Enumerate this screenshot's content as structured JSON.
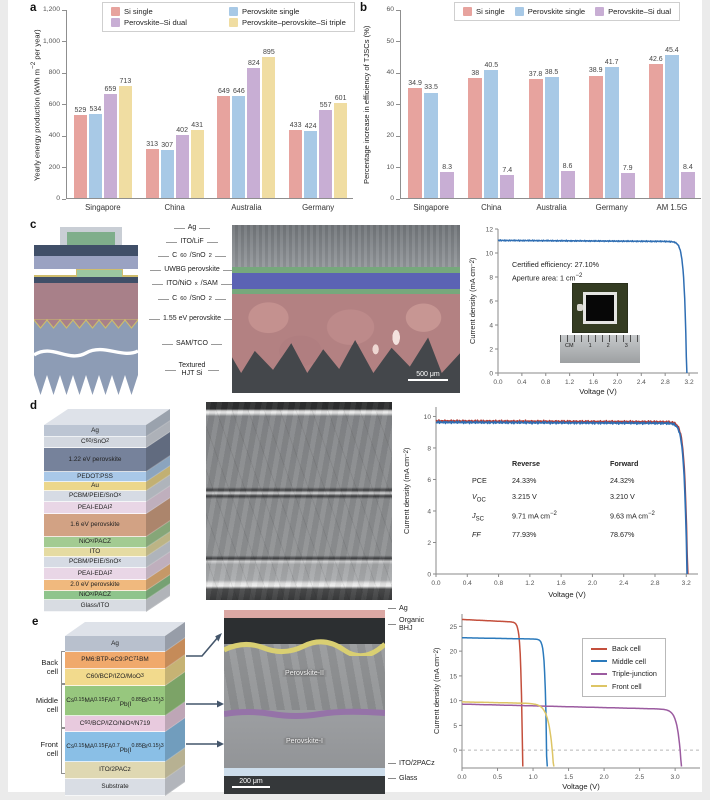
{
  "a": {
    "marker": "a",
    "chart_data": {
      "type": "bar",
      "ylabel_html": "Yearly energy production (kWh m<sup>−2</sup> per year)",
      "ylim": [
        0,
        1200
      ],
      "yticks": [
        {
          "v": 0,
          "t": "0"
        },
        {
          "v": 200,
          "t": "200"
        },
        {
          "v": 400,
          "t": "400"
        },
        {
          "v": 600,
          "t": "600"
        },
        {
          "v": 800,
          "t": "800"
        },
        {
          "v": 1000,
          "t": "1,000"
        },
        {
          "v": 1200,
          "t": "1,200"
        }
      ],
      "categories": [
        "Singapore",
        "China",
        "Australia",
        "Germany"
      ],
      "series": [
        {
          "name": "Si single",
          "color": "#e7a39e",
          "values": [
            529,
            313,
            649,
            433
          ]
        },
        {
          "name": "Perovskite single",
          "color": "#a8c9e6",
          "values": [
            534,
            307,
            646,
            424
          ]
        },
        {
          "name": "Perovskite–Si dual",
          "color": "#c8aed4",
          "values": [
            659,
            402,
            824,
            557
          ]
        },
        {
          "name": "Perovskite–perovskite–Si triple",
          "color": "#f0dda2",
          "values": [
            713,
            431,
            895,
            601
          ]
        }
      ]
    }
  },
  "b": {
    "marker": "b",
    "chart_data": {
      "type": "bar",
      "ylabel_html": "Percentage increase in efficiency of TJSCs (%)",
      "ylim": [
        0,
        60
      ],
      "yticks": [
        {
          "v": 0,
          "t": "0"
        },
        {
          "v": 10,
          "t": "10"
        },
        {
          "v": 20,
          "t": "20"
        },
        {
          "v": 30,
          "t": "30"
        },
        {
          "v": 40,
          "t": "40"
        },
        {
          "v": 50,
          "t": "50"
        },
        {
          "v": 60,
          "t": "60"
        }
      ],
      "categories": [
        "Singapore",
        "China",
        "Australia",
        "Germany",
        "AM 1.5G"
      ],
      "series": [
        {
          "name": "Si single",
          "color": "#e7a39e",
          "values": [
            34.9,
            38,
            37.8,
            38.9,
            42.6
          ]
        },
        {
          "name": "Perovskite single",
          "color": "#a8c9e6",
          "values": [
            33.5,
            40.5,
            38.5,
            41.7,
            45.4
          ]
        },
        {
          "name": "Perovskite–Si dual",
          "color": "#c8aed4",
          "values": [
            8.3,
            7.4,
            8.6,
            7.9,
            8.4
          ]
        }
      ]
    }
  },
  "c": {
    "marker": "c",
    "stack": {
      "labels": [
        {
          "t": "Ag",
          "y": 5
        },
        {
          "t": "ITO/LiF",
          "y": 19
        },
        {
          "t": "C<sub>60</sub>/SnO<sub>2</sub>",
          "y": 33
        },
        {
          "t": "UWBG perovskite",
          "y": 47
        },
        {
          "t": "ITO/NiO<sub>x</sub>/SAM",
          "y": 61
        },
        {
          "t": "C<sub>60</sub>/SnO<sub>2</sub>",
          "y": 76
        },
        {
          "t": "1.55 eV perovskite",
          "y": 96
        },
        {
          "t": "SAM/TCO",
          "y": 121
        },
        {
          "t": "Textured<br>HJT Si",
          "y": 143
        }
      ]
    },
    "sem": {
      "scale": "500 μm"
    },
    "jv": {
      "chart_data": {
        "type": "line",
        "xlabel": "Voltage (V)",
        "ylabel_html": "Current density (mA cm<sup>−2</sup>)",
        "xlim": [
          0,
          3.35
        ],
        "ylim": [
          0,
          12
        ],
        "xticks": [
          {
            "v": 0,
            "t": "0.0"
          },
          {
            "v": 0.4,
            "t": "0.4"
          },
          {
            "v": 0.8,
            "t": "0.8"
          },
          {
            "v": 1.2,
            "t": "1.2"
          },
          {
            "v": 1.6,
            "t": "1.6"
          },
          {
            "v": 2.0,
            "t": "2.0"
          },
          {
            "v": 2.4,
            "t": "2.4"
          },
          {
            "v": 2.8,
            "t": "2.8"
          },
          {
            "v": 3.2,
            "t": "3.2"
          }
        ],
        "yticks": [
          {
            "v": 0,
            "t": "0"
          },
          {
            "v": 2,
            "t": "2"
          },
          {
            "v": 4,
            "t": "4"
          },
          {
            "v": 6,
            "t": "6"
          },
          {
            "v": 8,
            "t": "8"
          },
          {
            "v": 10,
            "t": "10"
          },
          {
            "v": 12,
            "t": "12"
          }
        ],
        "curves": [
          {
            "name": "Certified J–V",
            "color": "#2f6eb3",
            "jsc": 11.05,
            "voc": 3.16,
            "w": 0.04,
            "slope": 0.03,
            "noise": 0.05,
            "sw": 1.5
          }
        ],
        "annotation": [
          "Certified efficiency: 27.10%",
          "Aperture area: 1 cm<sup>−2</sup>"
        ]
      },
      "inset": {
        "ruler_unit": "CM",
        "ruler_marks": [
          "1",
          "2",
          "3"
        ]
      }
    }
  },
  "d": {
    "marker": "d",
    "stack": {
      "layers": [
        {
          "label": "Ag",
          "color": "#bcc5d3",
          "h": 11
        },
        {
          "label": "C<sub>60</sub>/SnO<sub>2</sub>",
          "color": "#d3d8e0",
          "h": 10
        },
        {
          "label": "1.22 eV perovskite",
          "color": "#76829b",
          "h": 23
        },
        {
          "label": "PEDOT:PSS",
          "color": "#a9c8e8",
          "h": 9
        },
        {
          "label": "Au",
          "color": "#ecd78c",
          "h": 8
        },
        {
          "label": "PCBM/PEIE/SnO<sub>x</sub>",
          "color": "#d6dbe4",
          "h": 10
        },
        {
          "label": "PEAI-EDAI<sub>2</sub>",
          "color": "#e9d6e6",
          "h": 11
        },
        {
          "label": "1.6 eV perovskite",
          "color": "#d2a284",
          "h": 22
        },
        {
          "label": "NiO<sub>x</sub>/PACZ",
          "color": "#a3cb92",
          "h": 10
        },
        {
          "label": "ITO",
          "color": "#e5dba2",
          "h": 8
        },
        {
          "label": "PCBM/PEIE/SnO<sub>x</sub>",
          "color": "#d6dbe4",
          "h": 10
        },
        {
          "label": "PEAI-EDAI<sub>2</sub>",
          "color": "#e9d6e6",
          "h": 11
        },
        {
          "label": "2.0 eV perovskite",
          "color": "#f0b97e",
          "h": 10
        },
        {
          "label": "NiO<sub>x</sub>/PACZ",
          "color": "#8fc48c",
          "h": 8
        },
        {
          "label": "Glass/ITO",
          "color": "#d8dce2",
          "h": 11
        }
      ]
    },
    "jv": {
      "chart_data": {
        "type": "line",
        "xlabel": "Voltage (V)",
        "ylabel_html": "Current density (mA cm<sup>−2</sup>)",
        "xlim": [
          0,
          3.35
        ],
        "ylim": [
          0,
          10.6
        ],
        "xticks": [
          {
            "v": 0,
            "t": "0.0"
          },
          {
            "v": 0.4,
            "t": "0.4"
          },
          {
            "v": 0.8,
            "t": "0.8"
          },
          {
            "v": 1.2,
            "t": "1.2"
          },
          {
            "v": 1.6,
            "t": "1.6"
          },
          {
            "v": 2.0,
            "t": "2.0"
          },
          {
            "v": 2.4,
            "t": "2.4"
          },
          {
            "v": 2.8,
            "t": "2.8"
          },
          {
            "v": 3.2,
            "t": "3.2"
          }
        ],
        "yticks": [
          {
            "v": 0,
            "t": "0"
          },
          {
            "v": 2,
            "t": "2"
          },
          {
            "v": 4,
            "t": "4"
          },
          {
            "v": 6,
            "t": "6"
          },
          {
            "v": 8,
            "t": "8"
          },
          {
            "v": 10,
            "t": "10"
          }
        ],
        "curves": [
          {
            "name": "Reverse",
            "color": "#b23b35",
            "jsc": 9.71,
            "voc": 3.215,
            "w": 0.035,
            "slope": 0.02,
            "noise": 0.07,
            "ph": 0,
            "sw": 1.7
          },
          {
            "name": "Forward",
            "color": "#2f6eb3",
            "jsc": 9.63,
            "voc": 3.21,
            "w": 0.035,
            "slope": 0.02,
            "noise": 0.07,
            "ph": 2.1,
            "sw": 1.7
          }
        ],
        "table": {
          "headers": [
            "Reverse",
            "Forward"
          ],
          "rows": [
            {
              "p": "PCE",
              "r": "24.33%",
              "f": "24.32%"
            },
            {
              "p": "<i>V</i><sub>OC</sub>",
              "r": "3.215 V",
              "f": "3.210 V"
            },
            {
              "p": "<i>J</i><sub>SC</sub>",
              "r": "9.71 mA cm<sup>−2</sup>",
              "f": "9.63 mA cm<sup>−2</sup>"
            },
            {
              "p": "<i>FF</i>",
              "r": "77.93%",
              "f": "78.67%"
            }
          ]
        }
      }
    }
  },
  "e": {
    "marker": "e",
    "cells": [
      {
        "label": "Back<br>cell"
      },
      {
        "label": "Middle<br>cell"
      },
      {
        "label": "Front<br>cell"
      }
    ],
    "stack": {
      "layers": [
        {
          "label": "Ag",
          "color": "#b8c0cd",
          "h": 15
        },
        {
          "label": "PM6:BTP-eC9:PC<sub>71</sub>BM",
          "color": "#f0a96c",
          "h": 16
        },
        {
          "label": "C60/BCP/IZO/MoO<sub>3</sub>",
          "color": "#f2da8d",
          "h": 16
        },
        {
          "label": "Cs<sub>0.15</sub>MA<sub>0.15</sub>FA<sub>0.7</sub><br>Pb(I<sub>0.85</sub>Br<sub>0.15</sub>)<sub>3</sub>",
          "color": "#97c77e",
          "h": 29
        },
        {
          "label": "C<sub>60</sub>/BCP/IZO/NiO<sub>x</sub>/N719",
          "color": "#e8cade",
          "h": 15
        },
        {
          "label": "Cs<sub>0.15</sub>MA<sub>0.15</sub>FA<sub>0.7</sub><br>Pb(I<sub>0.85</sub>Br<sub>0.15</sub>)<sub>3</sub>",
          "color": "#8abfe6",
          "h": 29
        },
        {
          "label": "ITO/2PACz",
          "color": "#dfd8b2",
          "h": 16
        },
        {
          "label": "Substrate",
          "color": "#d9dde4",
          "h": 16
        }
      ]
    },
    "sem": {
      "scale": "200 μm",
      "inner_labels": [
        {
          "t": "Perovskite-II",
          "y": 60
        },
        {
          "t": "Perovskite-I",
          "y": 128
        }
      ],
      "right_labels": [
        {
          "t": "Ag",
          "y": 0
        },
        {
          "t": "Organic<br>BHJ",
          "y": 12
        },
        {
          "t": "ITO/2PACz",
          "y": 155
        },
        {
          "t": "Glass",
          "y": 170
        }
      ]
    },
    "jv": {
      "chart_data": {
        "type": "line",
        "xlabel": "Voltage (V)",
        "ylabel_html": "Current density (mA cm<sup>−2</sup>)",
        "xlim": [
          0,
          3.35
        ],
        "ylim": [
          -3.6,
          27.5
        ],
        "zero_dash": true,
        "xticks": [
          {
            "v": 0,
            "t": "0.0"
          },
          {
            "v": 0.5,
            "t": "0.5"
          },
          {
            "v": 1.0,
            "t": "1.0"
          },
          {
            "v": 1.5,
            "t": "1.5"
          },
          {
            "v": 2.0,
            "t": "2.0"
          },
          {
            "v": 2.5,
            "t": "2.5"
          },
          {
            "v": 3.0,
            "t": "3.0"
          }
        ],
        "yticks": [
          {
            "v": 0,
            "t": "0"
          },
          {
            "v": 5,
            "t": "5"
          },
          {
            "v": 10,
            "t": "10"
          },
          {
            "v": 15,
            "t": "15"
          },
          {
            "v": 20,
            "t": "20"
          },
          {
            "v": 25,
            "t": "25"
          }
        ],
        "curves": [
          {
            "name": "Back cell",
            "color": "#c44f3c",
            "jsc": 26.4,
            "voc": 0.85,
            "w": 0.022,
            "slope": 0.7,
            "sw": 1.5
          },
          {
            "name": "Middle cell",
            "color": "#2b7abc",
            "jsc": 22.7,
            "voc": 1.19,
            "w": 0.022,
            "slope": 0.25,
            "sw": 1.5
          },
          {
            "name": "Triple-junction",
            "color": "#9b5ba0",
            "jsc": 9.3,
            "voc": 3.07,
            "w": 0.05,
            "slope": 0.35,
            "sw": 1.5
          },
          {
            "name": "Front cell",
            "color": "#ddc565",
            "jsc": 9.75,
            "voc": 1.27,
            "w": 0.06,
            "slope": 0.3,
            "sw": 1.5
          }
        ]
      }
    }
  }
}
